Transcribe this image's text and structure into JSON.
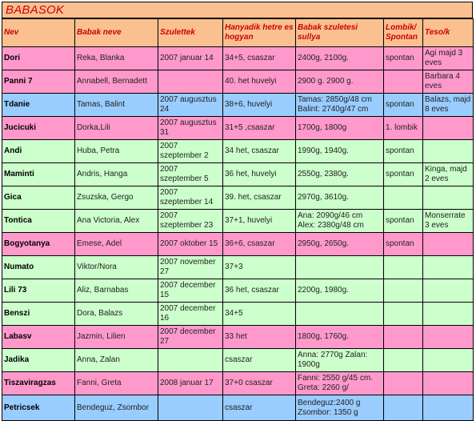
{
  "title": "BABASOK",
  "columns": [
    "Nev",
    "Babak neve",
    "Szulettek",
    "Hanyadik hetre es hogyan",
    "Babak szuletesi sullya",
    "Lombik/ Spontan",
    "Teso/k"
  ],
  "colors": {
    "pink": "#ff99cc",
    "blue": "#99ccff",
    "green": "#ccffcc",
    "header": "#fac090",
    "title_text": "#cc0000"
  },
  "rows": [
    {
      "color": "pink",
      "nev": "Dori",
      "babak": "Reka, Blanka",
      "szulettek": "2007 januar 14",
      "het": "34+5, csaszar",
      "suly": "2400g, 2100g.",
      "lombik": "spontan",
      "teso": "Agi majd 3 eves"
    },
    {
      "color": "pink",
      "nev": "Panni 7",
      "babak": "Annabell, Bernadett",
      "szulettek": "",
      "het": "40. het huvelyi",
      "suly": "2900 g. 2900 g.",
      "lombik": "",
      "teso": "Barbara 4 eves"
    },
    {
      "color": "blue",
      "nev": "Tdanie",
      "babak": "Tamas, Balint",
      "szulettek": "2007 augusztus 24",
      "het": "38+6, huvelyi",
      "suly": "Tamas: 2850g/48 cm Balint: 2740g/47 cm",
      "lombik": "spontan",
      "teso": "Balazs, majd 8 eves"
    },
    {
      "color": "pink",
      "nev": "Jucicuki",
      "babak": "Dorka,Lili",
      "szulettek": "2007 augusztus 31",
      "het": "31+5 ,csaszar",
      "suly": "1700g, 1800g",
      "lombik": "1. lombik",
      "teso": ""
    },
    {
      "color": "green",
      "nev": "Andi",
      "babak": "Huba, Petra",
      "szulettek": "2007 szeptember 2",
      "het": "34 het, csaszar",
      "suly": "1990g, 1940g.",
      "lombik": "spontan",
      "teso": ""
    },
    {
      "color": "green",
      "nev": "Maminti",
      "babak": "Andris, Hanga",
      "szulettek": "2007 szeptember 5",
      "het": "36 het, huvelyi",
      "suly": "2550g, 2380g.",
      "lombik": "spontan",
      "teso": "Kinga, majd 2 eves"
    },
    {
      "color": "green",
      "nev": "Gica",
      "babak": "Zsuzska, Gergo",
      "szulettek": "2007 szeptember 14",
      "het": "39. het, csaszar",
      "suly": "2970g, 3610g.",
      "lombik": "",
      "teso": ""
    },
    {
      "color": "green",
      "nev": "Tontica",
      "babak": "Ana Victoria, Alex",
      "szulettek": "2007 szeptember 23",
      "het": "37+1, huvelyi",
      "suly": "Ana: 2090g/46 cm Alex: 2380g/48 cm",
      "lombik": "spontan",
      "teso": "Monserrate 3 eves"
    },
    {
      "color": "pink",
      "nev": "Bogyotanya",
      "babak": "Emese, Adel",
      "szulettek": "2007 oktober 15",
      "het": "36+6, csaszar",
      "suly": "2950g, 2650g.",
      "lombik": "spontan",
      "teso": ""
    },
    {
      "color": "green",
      "nev": "Numato",
      "babak": "Viktor/Nora",
      "szulettek": "2007 november 27",
      "het": "37+3",
      "suly": "",
      "lombik": "",
      "teso": ""
    },
    {
      "color": "green",
      "nev": "Lili 73",
      "babak": "Aliz, Barnabas",
      "szulettek": "2007 december 15",
      "het": "36 het, csaszar",
      "suly": "2200g, 1980g.",
      "lombik": "",
      "teso": ""
    },
    {
      "color": "green",
      "nev": "Benszi",
      "babak": "Dora, Balazs",
      "szulettek": "2007 december 16",
      "het": "34+5",
      "suly": "",
      "lombik": "",
      "teso": ""
    },
    {
      "color": "pink",
      "nev": "Labasv",
      "babak": "Jazmin, Lilien",
      "szulettek": "2007 december 27",
      "het": "33 het",
      "suly": "1800g, 1760g.",
      "lombik": "",
      "teso": ""
    },
    {
      "color": "green",
      "nev": "Jadika",
      "babak": "Anna, Zalan",
      "szulettek": "",
      "het": "csaszar",
      "suly": "Anna: 2770g Zalan: 1900g",
      "lombik": "",
      "teso": ""
    },
    {
      "color": "pink",
      "nev": "Tiszaviragzas",
      "babak": "Fanni, Greta",
      "szulettek": "2008 januar 17",
      "het": "37+0 csaszar",
      "suly": "Fanni: 2550 g/45 cm. Greta: 2260 g/",
      "lombik": "",
      "teso": ""
    },
    {
      "color": "blue",
      "nev": "Petricsek",
      "babak": "Bendeguz, Zsombor",
      "szulettek": "",
      "het": "csaszar",
      "suly": "Bendeguz:2400 g Zsombor: 1350 g",
      "lombik": "",
      "teso": ""
    }
  ]
}
